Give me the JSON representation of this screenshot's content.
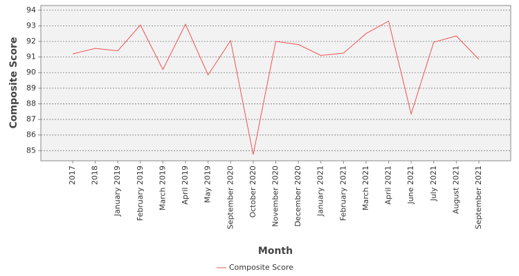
{
  "chart_data": {
    "type": "line",
    "x_label": "Month",
    "y_label": "Composite Score",
    "categories": [
      "2017",
      "2018",
      "January 2019",
      "February 2019",
      "March 2019",
      "April 2019",
      "May 2019",
      "September 2020",
      "October 2020",
      "November 2020",
      "December 2020",
      "January 2021",
      "February 2021",
      "March 2021",
      "April 2021",
      "June 2021",
      "July 2021",
      "August 2021",
      "September 2021"
    ],
    "series": [
      {
        "name": "Composite Score",
        "color": "#f05050",
        "values": [
          91.2,
          91.55,
          91.4,
          93.05,
          90.2,
          93.1,
          89.85,
          92.05,
          84.75,
          92.0,
          91.8,
          91.1,
          91.25,
          92.5,
          93.3,
          87.35,
          91.95,
          92.35,
          90.85
        ]
      }
    ],
    "ylim": [
      84.35,
      94.3
    ],
    "yticks": [
      85,
      86,
      87,
      88,
      89,
      90,
      91,
      92,
      93,
      94
    ],
    "grid": true,
    "legend": "bottom"
  }
}
